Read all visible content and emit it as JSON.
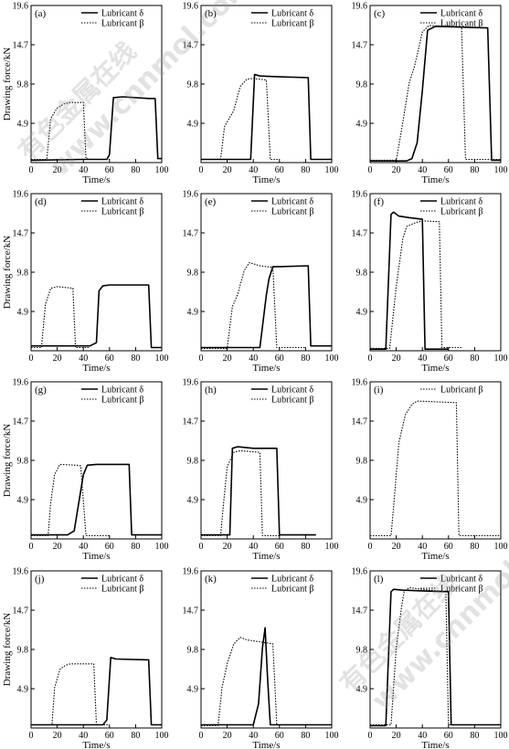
{
  "watermark": {
    "cn": "有色金属在线",
    "url": "www.cnnmol.com"
  },
  "chart_data": [
    {
      "type": "line",
      "label": "(a)",
      "ylabel": "Drawing force/kN",
      "xlabel": "Time/s",
      "xlim": [
        0,
        100
      ],
      "ylim": [
        0,
        19.6
      ],
      "x_ticks": [
        0,
        20,
        40,
        60,
        80,
        100
      ],
      "y_ticks": [
        4.9,
        9.8,
        14.7,
        19.6
      ],
      "series": [
        {
          "name": "Lubricant δ",
          "style": "solid",
          "x": [
            0,
            3,
            40,
            58,
            60,
            63,
            70,
            90,
            95,
            97,
            100
          ],
          "y": [
            0.3,
            0.3,
            0.4,
            0.4,
            1,
            8.1,
            8.2,
            8.0,
            8.0,
            0.5,
            0.5
          ]
        },
        {
          "name": "Lubricant β",
          "style": "dotted",
          "x": [
            0,
            12,
            15,
            20,
            25,
            30,
            40,
            42,
            45,
            60
          ],
          "y": [
            0.4,
            0.4,
            5.5,
            6.8,
            7.3,
            7.5,
            7.5,
            0.5,
            0.4,
            0.4
          ]
        }
      ]
    },
    {
      "type": "line",
      "label": "(b)",
      "ylabel": "",
      "xlabel": "Time/s",
      "xlim": [
        0,
        100
      ],
      "ylim": [
        0,
        19.6
      ],
      "x_ticks": [
        0,
        20,
        40,
        60,
        80,
        100
      ],
      "y_ticks": [
        4.9,
        9.8,
        14.7,
        19.6
      ],
      "series": [
        {
          "name": "Lubricant δ",
          "style": "solid",
          "x": [
            0,
            38,
            41,
            45,
            60,
            82,
            84,
            100
          ],
          "y": [
            0.4,
            0.4,
            11,
            10.8,
            10.7,
            10.6,
            0.4,
            0.4
          ]
        },
        {
          "name": "Lubricant β",
          "style": "dotted",
          "x": [
            0,
            15,
            18,
            25,
            30,
            35,
            40,
            50,
            53,
            60
          ],
          "y": [
            0.4,
            0.4,
            4.5,
            6.5,
            9.5,
            10.4,
            10.5,
            10.3,
            0.4,
            0.4
          ]
        }
      ]
    },
    {
      "type": "line",
      "label": "(c)",
      "ylabel": "",
      "xlabel": "Time/s",
      "xlim": [
        0,
        100
      ],
      "ylim": [
        0,
        19.6
      ],
      "x_ticks": [
        0,
        20,
        40,
        60,
        80,
        100
      ],
      "y_ticks": [
        4.9,
        9.8,
        14.7,
        19.6
      ],
      "series": [
        {
          "name": "Lubricant δ",
          "style": "solid",
          "x": [
            0,
            28,
            32,
            36,
            40,
            44,
            50,
            70,
            90,
            93,
            100
          ],
          "y": [
            0.2,
            0.2,
            0.5,
            2.5,
            9,
            16.5,
            17,
            16.9,
            16.8,
            0.3,
            0.3
          ]
        },
        {
          "name": "Lubricant β",
          "style": "dotted",
          "x": [
            0,
            20,
            24,
            30,
            34,
            40,
            45,
            70,
            73,
            100
          ],
          "y": [
            0.3,
            0.3,
            4,
            10,
            12,
            16.3,
            17.1,
            16.9,
            0.4,
            0.4
          ]
        }
      ]
    },
    {
      "type": "line",
      "label": "(d)",
      "ylabel": "Drawing force/kN",
      "xlabel": "Time/s",
      "xlim": [
        0,
        100
      ],
      "ylim": [
        0,
        19.6
      ],
      "x_ticks": [
        0,
        20,
        40,
        60,
        80,
        100
      ],
      "y_ticks": [
        4.9,
        9.8,
        14.7,
        19.6
      ],
      "series": [
        {
          "name": "Lubricant δ",
          "style": "solid",
          "x": [
            0,
            45,
            50,
            52,
            55,
            60,
            90,
            92,
            100
          ],
          "y": [
            0.6,
            0.6,
            1,
            7.5,
            8.1,
            8.2,
            8.2,
            0.4,
            0.4
          ]
        },
        {
          "name": "Lubricant β",
          "style": "dotted",
          "x": [
            0,
            8,
            11,
            15,
            20,
            32,
            34,
            45
          ],
          "y": [
            0.4,
            0.4,
            5.8,
            7.8,
            8,
            7.8,
            0.4,
            0.4
          ]
        }
      ]
    },
    {
      "type": "line",
      "label": "(e)",
      "ylabel": "",
      "xlabel": "Time/s",
      "xlim": [
        0,
        100
      ],
      "ylim": [
        0,
        19.6
      ],
      "x_ticks": [
        0,
        20,
        40,
        60,
        80,
        100
      ],
      "y_ticks": [
        4.9,
        9.8,
        14.7,
        19.6
      ],
      "series": [
        {
          "name": "Lubricant δ",
          "style": "solid",
          "x": [
            0,
            45,
            50,
            52,
            55,
            60,
            82,
            84,
            100
          ],
          "y": [
            0.4,
            0.4,
            7,
            9,
            10.5,
            10.5,
            10.6,
            0.6,
            0.6
          ]
        },
        {
          "name": "Lubricant β",
          "style": "dotted",
          "x": [
            0,
            20,
            24,
            28,
            33,
            37,
            45,
            55,
            58,
            80
          ],
          "y": [
            0.3,
            0.3,
            5.5,
            7,
            10,
            11,
            10.6,
            10.4,
            0.4,
            0.4
          ]
        }
      ]
    },
    {
      "type": "line",
      "label": "(f)",
      "ylabel": "",
      "xlabel": "Time/s",
      "xlim": [
        0,
        100
      ],
      "ylim": [
        0,
        19.6
      ],
      "x_ticks": [
        0,
        20,
        40,
        60,
        80,
        100
      ],
      "y_ticks": [
        4.9,
        9.8,
        14.7,
        19.6
      ],
      "series": [
        {
          "name": "Lubricant δ",
          "style": "solid",
          "x": [
            0,
            12,
            16,
            18,
            22,
            30,
            40,
            42,
            60
          ],
          "y": [
            0.2,
            0.2,
            17,
            17.3,
            16.8,
            16.6,
            16.4,
            0.2,
            0.2
          ]
        },
        {
          "name": "Lubricant β",
          "style": "dotted",
          "x": [
            0,
            15,
            20,
            25,
            28,
            35,
            40,
            53,
            55,
            70
          ],
          "y": [
            0.3,
            0.3,
            8,
            14,
            15.5,
            16,
            16.2,
            16.1,
            0.4,
            0.4
          ]
        }
      ]
    },
    {
      "type": "line",
      "label": "(g)",
      "ylabel": "Drawing force/kN",
      "xlabel": "Time/s",
      "xlim": [
        0,
        100
      ],
      "ylim": [
        0,
        19.6
      ],
      "x_ticks": [
        0,
        20,
        40,
        60,
        80,
        100
      ],
      "y_ticks": [
        4.9,
        9.8,
        14.7,
        19.6
      ],
      "series": [
        {
          "name": "Lubricant δ",
          "style": "solid",
          "x": [
            0,
            28,
            33,
            37,
            40,
            43,
            50,
            75,
            77,
            100
          ],
          "y": [
            0.5,
            0.5,
            1,
            5,
            8,
            9.2,
            9.3,
            9.3,
            0.5,
            0.5
          ]
        },
        {
          "name": "Lubricant β",
          "style": "dotted",
          "x": [
            0,
            13,
            15,
            18,
            22,
            35,
            38,
            42,
            60
          ],
          "y": [
            0.4,
            0.4,
            4.5,
            8,
            9.3,
            9.2,
            9.1,
            0.4,
            0.4
          ]
        }
      ]
    },
    {
      "type": "line",
      "label": "(h)",
      "ylabel": "",
      "xlabel": "Time/s",
      "xlim": [
        0,
        100
      ],
      "ylim": [
        0,
        19.6
      ],
      "x_ticks": [
        0,
        20,
        40,
        60,
        80,
        100
      ],
      "y_ticks": [
        4.9,
        9.8,
        14.7,
        19.6
      ],
      "series": [
        {
          "name": "Lubricant δ",
          "style": "solid",
          "x": [
            0,
            22,
            24,
            28,
            40,
            58,
            60,
            88
          ],
          "y": [
            0.5,
            0.5,
            11.3,
            11.5,
            11.3,
            11.3,
            0.5,
            0.5
          ]
        },
        {
          "name": "Lubricant β",
          "style": "dotted",
          "x": [
            0,
            15,
            17,
            20,
            25,
            30,
            45,
            47,
            60
          ],
          "y": [
            0.4,
            0.4,
            4,
            9,
            10.8,
            11,
            10.8,
            0.4,
            0.4
          ]
        }
      ]
    },
    {
      "type": "line",
      "label": "(i)",
      "ylabel": "",
      "xlabel": "Time/s",
      "xlim": [
        0,
        100
      ],
      "ylim": [
        0,
        19.6
      ],
      "x_ticks": [
        0,
        20,
        40,
        60,
        80,
        100
      ],
      "y_ticks": [
        4.9,
        9.8,
        14.7,
        19.6
      ],
      "series": [
        {
          "name": "Lubricant β",
          "style": "dotted",
          "x": [
            0,
            16,
            18,
            22,
            27,
            32,
            36,
            66,
            68,
            100
          ],
          "y": [
            0.4,
            0.4,
            4,
            12,
            15.5,
            16.8,
            17.2,
            17,
            0.4,
            0.4
          ]
        }
      ]
    },
    {
      "type": "line",
      "label": "(j)",
      "ylabel": "Drawing force/kN",
      "xlabel": "Time/s",
      "xlim": [
        0,
        100
      ],
      "ylim": [
        0,
        19.6
      ],
      "x_ticks": [
        0,
        20,
        40,
        60,
        80,
        100
      ],
      "y_ticks": [
        4.9,
        9.8,
        14.7,
        19.6
      ],
      "series": [
        {
          "name": "Lubricant δ",
          "style": "solid",
          "x": [
            0,
            55,
            58,
            61,
            65,
            90,
            92,
            100
          ],
          "y": [
            0.4,
            0.4,
            1,
            8.8,
            8.6,
            8.5,
            0.4,
            0.4
          ]
        },
        {
          "name": "Lubricant β",
          "style": "dotted",
          "x": [
            0,
            16,
            18,
            22,
            26,
            30,
            48,
            50,
            60
          ],
          "y": [
            0.4,
            0.4,
            5,
            7.3,
            7.8,
            8,
            8,
            0.4,
            0.4
          ]
        }
      ]
    },
    {
      "type": "line",
      "label": "(k)",
      "ylabel": "",
      "xlabel": "Time/s",
      "xlim": [
        0,
        100
      ],
      "ylim": [
        0,
        19.6
      ],
      "x_ticks": [
        0,
        20,
        40,
        60,
        80,
        100
      ],
      "y_ticks": [
        4.9,
        9.8,
        14.7,
        19.6
      ],
      "series": [
        {
          "name": "Lubricant δ",
          "style": "solid",
          "x": [
            0,
            40,
            44,
            47,
            49,
            51,
            53,
            100
          ],
          "y": [
            0.4,
            0.4,
            3,
            10,
            12.5,
            6,
            0.4,
            0.4
          ]
        },
        {
          "name": "Lubricant β",
          "style": "dotted",
          "x": [
            0,
            13,
            16,
            20,
            25,
            30,
            35,
            55,
            58,
            95
          ],
          "y": [
            0.3,
            0.3,
            5,
            8,
            10.5,
            11.3,
            11,
            10.5,
            0.4,
            0.4
          ]
        }
      ]
    },
    {
      "type": "line",
      "label": "(l)",
      "ylabel": "",
      "xlabel": "Time/s",
      "xlim": [
        0,
        100
      ],
      "ylim": [
        0,
        19.6
      ],
      "x_ticks": [
        0,
        20,
        40,
        60,
        80,
        100
      ],
      "y_ticks": [
        4.9,
        9.8,
        14.7,
        19.6
      ],
      "series": [
        {
          "name": "Lubricant δ",
          "style": "solid",
          "x": [
            0,
            12,
            16,
            18,
            25,
            40,
            60,
            62,
            100
          ],
          "y": [
            0.3,
            0.3,
            17,
            17.3,
            17.2,
            17.1,
            17,
            0.4,
            0.4
          ]
        },
        {
          "name": "Lubricant β",
          "style": "dotted",
          "x": [
            0,
            16,
            20,
            24,
            26,
            30,
            40,
            58,
            60,
            100
          ],
          "y": [
            0.4,
            0.4,
            10,
            15,
            17,
            17.5,
            17.3,
            17,
            0.4,
            0.4
          ]
        }
      ]
    }
  ]
}
